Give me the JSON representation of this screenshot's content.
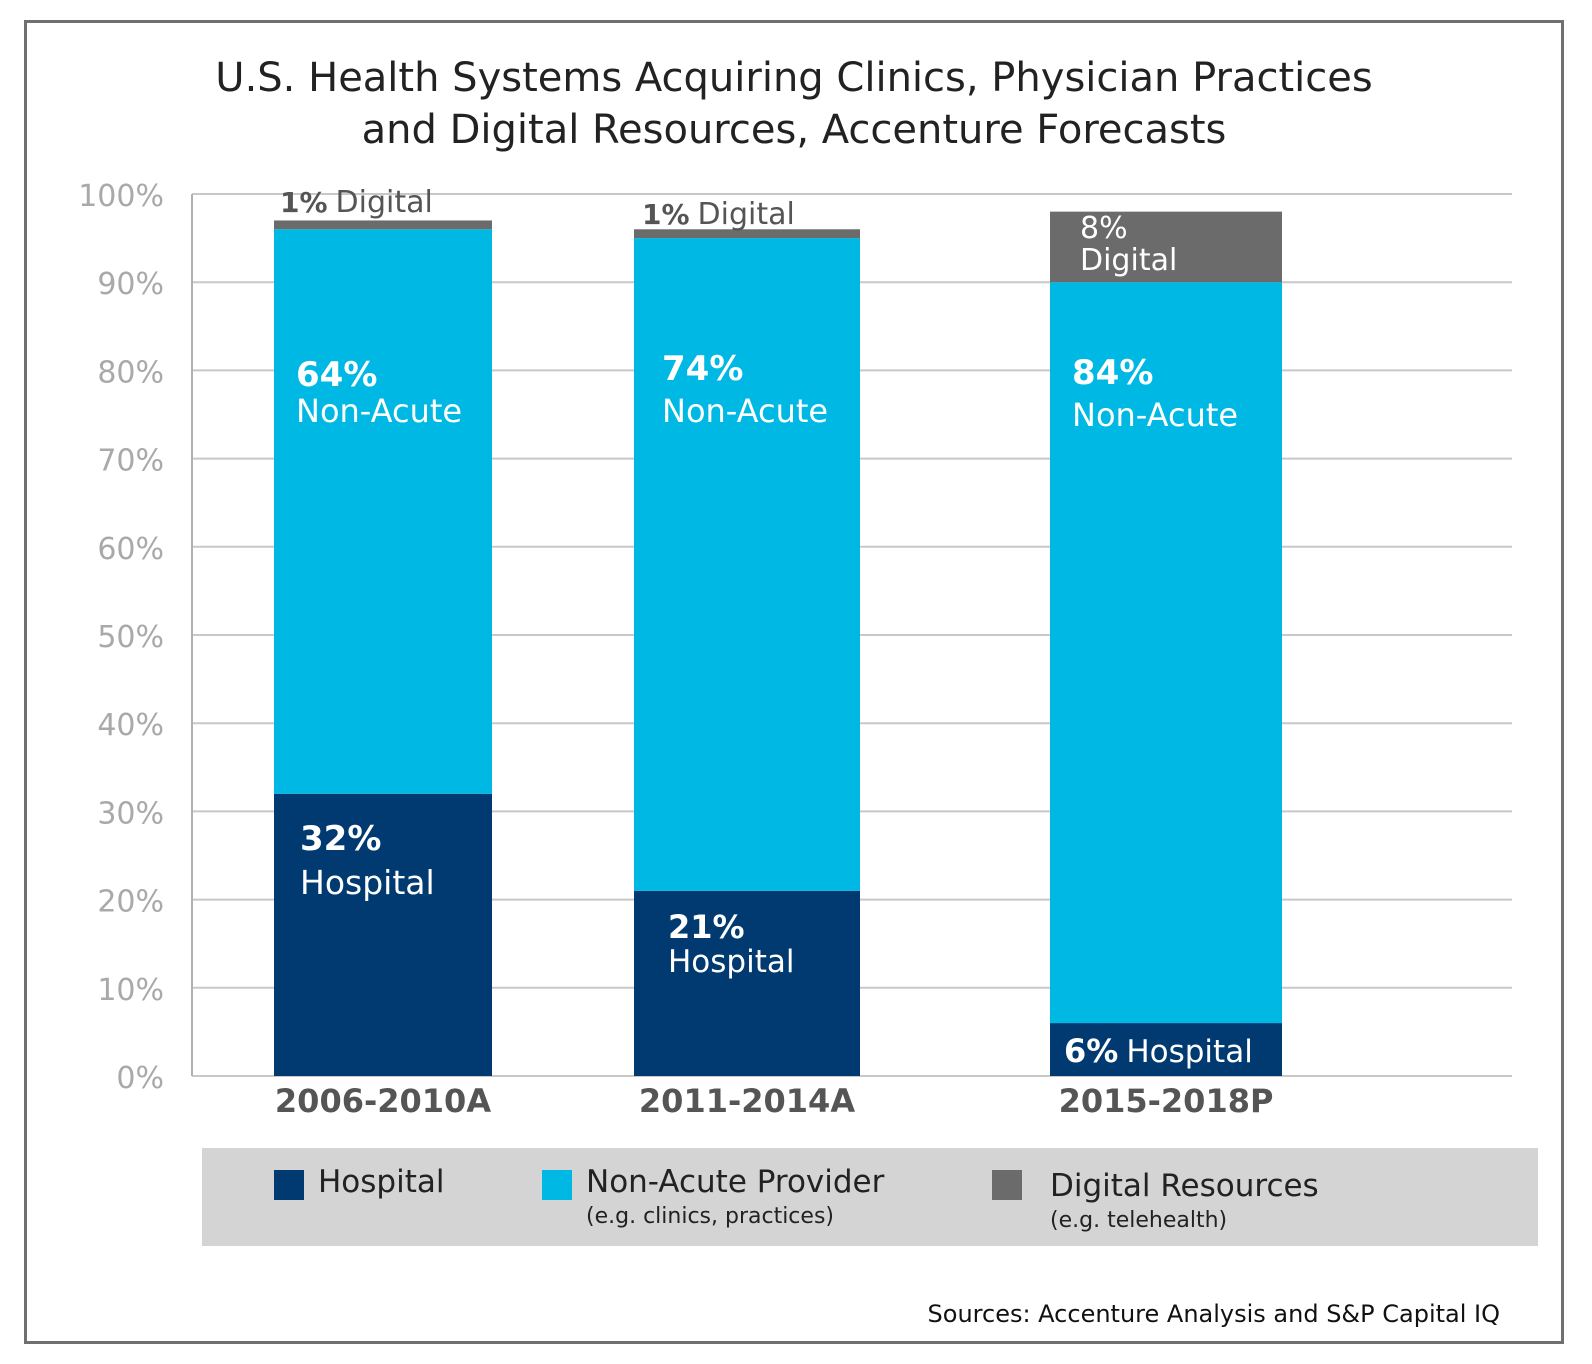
{
  "chart_data": {
    "type": "bar",
    "stacked": true,
    "title_lines": [
      "U.S. Health Systems Acquiring Clinics, Physician Practices",
      "and Digital Resources, Accenture Forecasts"
    ],
    "categories": [
      "2006-2010A",
      "2011-2014A",
      "2015-2018P"
    ],
    "series": [
      {
        "name": "Hospital",
        "values": [
          32,
          21,
          6
        ],
        "color": "#003a70"
      },
      {
        "name": "Non-Acute Provider",
        "values": [
          64,
          74,
          84
        ],
        "color": "#00b8e4"
      },
      {
        "name": "Digital Resources",
        "values": [
          1,
          1,
          8
        ],
        "color": "#6b6b6b"
      }
    ],
    "ylim": [
      0,
      100
    ],
    "yticks": [
      "0%",
      "10%",
      "20%",
      "30%",
      "40%",
      "50%",
      "60%",
      "70%",
      "80%",
      "90%",
      "100%"
    ],
    "grid": true,
    "bar_labels": [
      [
        {
          "pct": "32%",
          "text": "Hospital",
          "color": "#ffffff"
        },
        {
          "pct": "64%",
          "text": "Non-Acute",
          "color": "#ffffff"
        },
        {
          "pct": "1%",
          "text": "Digital",
          "color": "#555555"
        }
      ],
      [
        {
          "pct": "21%",
          "text": "Hospital",
          "color": "#ffffff"
        },
        {
          "pct": "74%",
          "text": "Non-Acute",
          "color": "#ffffff"
        },
        {
          "pct": "1%",
          "text": "Digital",
          "color": "#555555"
        }
      ],
      [
        {
          "pct": "6%",
          "text": "Hospital",
          "color": "#ffffff"
        },
        {
          "pct": "84%",
          "text": "Non-Acute",
          "color": "#ffffff"
        },
        {
          "pct": "8%",
          "text": "Digital",
          "color": "#ffffff"
        }
      ]
    ]
  },
  "legend": {
    "items": [
      {
        "label": "Hospital",
        "sub": "",
        "color": "#003a70"
      },
      {
        "label": "Non-Acute Provider",
        "sub": "(e.g. clinics, practices)",
        "color": "#00b8e4"
      },
      {
        "label": "Digital Resources",
        "sub": "(e.g. telehealth)",
        "color": "#6b6b6b"
      }
    ]
  },
  "source": "Sources: Accenture Analysis and S&P Capital IQ"
}
